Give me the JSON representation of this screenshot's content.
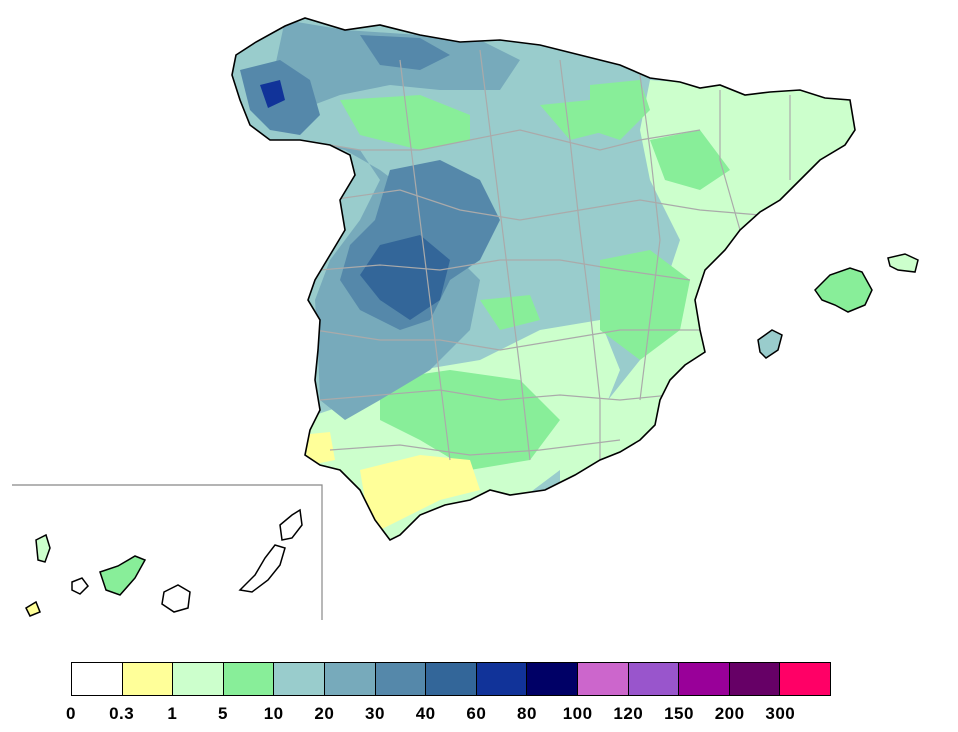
{
  "map": {
    "regions": [
      "iberian-peninsula",
      "balearic-islands",
      "canary-islands"
    ],
    "inset": "canary-islands",
    "province-borders": true
  },
  "legend": {
    "ticks": [
      "0",
      "0.3",
      "1",
      "5",
      "10",
      "20",
      "30",
      "40",
      "60",
      "80",
      "100",
      "120",
      "150",
      "200",
      "300"
    ],
    "colors": [
      "#ffffff",
      "#ffff99",
      "#ccffcc",
      "#88ee99",
      "#99cccc",
      "#77aabb",
      "#5588aa",
      "#336699",
      "#113399",
      "#000066",
      "#cc66cc",
      "#9955cc",
      "#990099",
      "#660066",
      "#ff0066"
    ]
  }
}
